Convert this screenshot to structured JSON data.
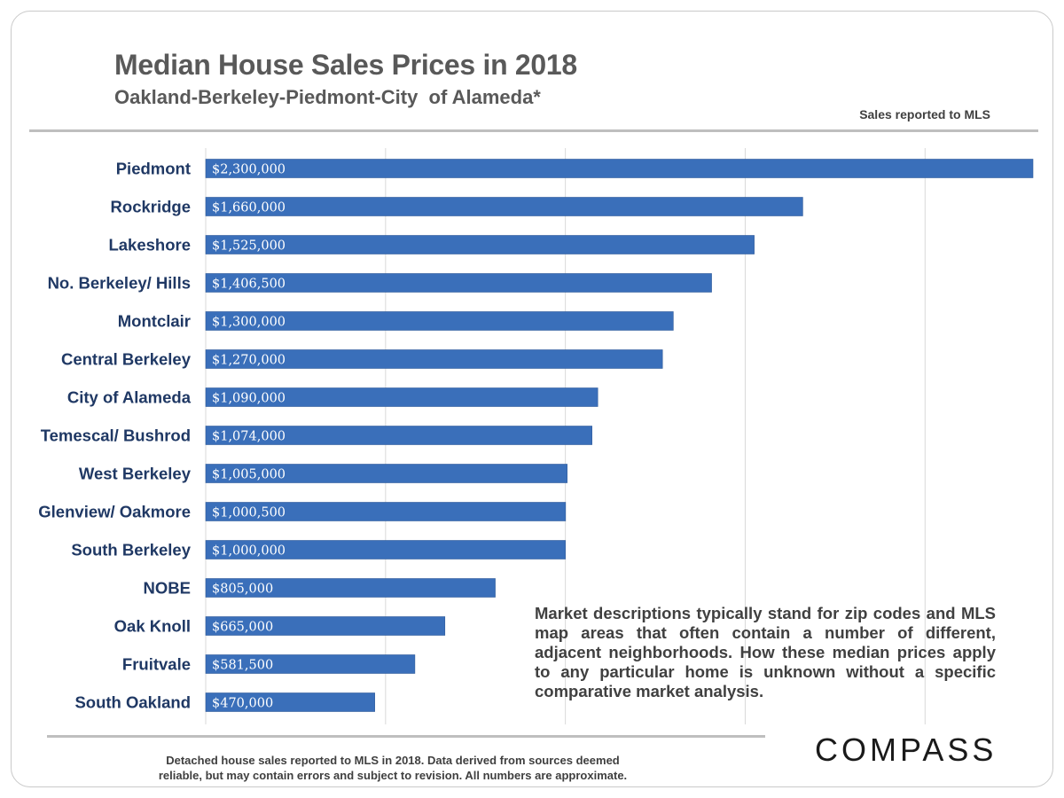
{
  "chart_data": {
    "type": "bar",
    "orientation": "horizontal",
    "title": "Median House Sales Prices in 2018",
    "subtitle": "Oakland-Berkeley-Piedmont-City  of Alameda*",
    "source_note": "Sales reported to MLS",
    "categories": [
      "Piedmont",
      "Rockridge",
      "Lakeshore",
      "No. Berkeley/ Hills",
      "Montclair",
      "Central Berkeley",
      "City of Alameda",
      "Temescal/ Bushrod",
      "West Berkeley",
      "Glenview/ Oakmore",
      "South Berkeley",
      "NOBE",
      "Oak Knoll",
      "Fruitvale",
      "South Oakland"
    ],
    "values": [
      2300000,
      1660000,
      1525000,
      1406500,
      1300000,
      1270000,
      1090000,
      1074000,
      1005000,
      1000500,
      1000000,
      805000,
      665000,
      581500,
      470000
    ],
    "data_labels": [
      "$2,300,000",
      "$1,660,000",
      "$1,525,000",
      "$1,406,500",
      "$1,300,000",
      "$1,270,000",
      "$1,090,000",
      "$1,074,000",
      "$1,005,000",
      "$1,000,500",
      "$1,000,000",
      "$805,000",
      "$665,000",
      "$581,500",
      "$470,000"
    ],
    "xlim": [
      0,
      2300000
    ],
    "gridlines_x": [
      500000,
      1000000,
      1500000,
      2000000
    ],
    "grid": true,
    "xaxis_labels_shown": false,
    "bar_color": "#3a6fba",
    "label_color": "#1f3864",
    "data_label_color": "#ffffff",
    "gridline_color": "#d9d9d9"
  },
  "annotation": {
    "text": "Market descriptions typically stand for zip codes and MLS map areas that often contain a number of different, adjacent neighborhoods. How these median prices apply to any particular home is unknown without a specific comparative market analysis."
  },
  "brand": {
    "logo_text": "COMPASS"
  },
  "footer": {
    "line1": "Detached house sales reported to MLS in 2018. Data derived from sources deemed",
    "line2": "reliable, but may contain errors and subject to revision. All numbers are approximate."
  }
}
